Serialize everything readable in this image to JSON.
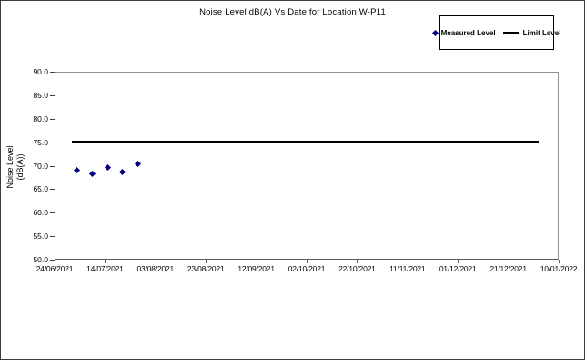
{
  "window": {
    "background": "#ffffff",
    "frame_border_color": "#3c3c3c"
  },
  "legend": {
    "position": "top-right",
    "border_color": "#000000",
    "items": [
      {
        "label": "Measured Level",
        "marker": "diamond",
        "color": "#000080"
      },
      {
        "label": "Limit Level",
        "marker": "thick-line",
        "color": "#000000"
      }
    ]
  },
  "chart_data": {
    "type": "scatter",
    "title": "Noise Level dB(A) Vs Date for Location W-P11",
    "xlabel": "",
    "ylabel": "Noise Level (dB(A))",
    "ylabel_lines": [
      "Noise Level",
      "(dB(A))"
    ],
    "ylim": [
      50.0,
      90.0
    ],
    "ytick_step": 5.0,
    "ytick_labels": [
      "90.0",
      "85.0",
      "80.0",
      "75.0",
      "70.0",
      "65.0",
      "60.0",
      "55.0",
      "50.0"
    ],
    "xtick_labels": [
      "24/06/2021",
      "14/07/2021",
      "03/08/2021",
      "23/08/2021",
      "12/09/2021",
      "02/10/2021",
      "22/10/2021",
      "11/11/2021",
      "01/12/2021",
      "21/12/2021",
      "10/01/2022"
    ],
    "x_axis_start": "24/06/2021",
    "x_axis_end": "10/01/2022",
    "x_axis_span_days": 200,
    "x_tick_interval_days": 20,
    "grid": false,
    "legend_position": "top-right",
    "series": [
      {
        "name": "Measured Level",
        "type": "scatter",
        "marker": "diamond",
        "color": "#000080",
        "points": [
          {
            "date": "03/07/2021",
            "day": 9,
            "value": 69.1
          },
          {
            "date": "09/07/2021",
            "day": 15,
            "value": 68.2
          },
          {
            "date": "15/07/2021",
            "day": 21,
            "value": 69.7
          },
          {
            "date": "21/07/2021",
            "day": 27,
            "value": 68.6
          },
          {
            "date": "27/07/2021",
            "day": 33,
            "value": 70.4
          }
        ]
      },
      {
        "name": "Limit Level",
        "type": "line",
        "color": "#000000",
        "value": 75.0,
        "start_day": 7,
        "end_day": 192,
        "start_date": "01/07/2021",
        "end_date": "02/01/2022"
      }
    ]
  }
}
